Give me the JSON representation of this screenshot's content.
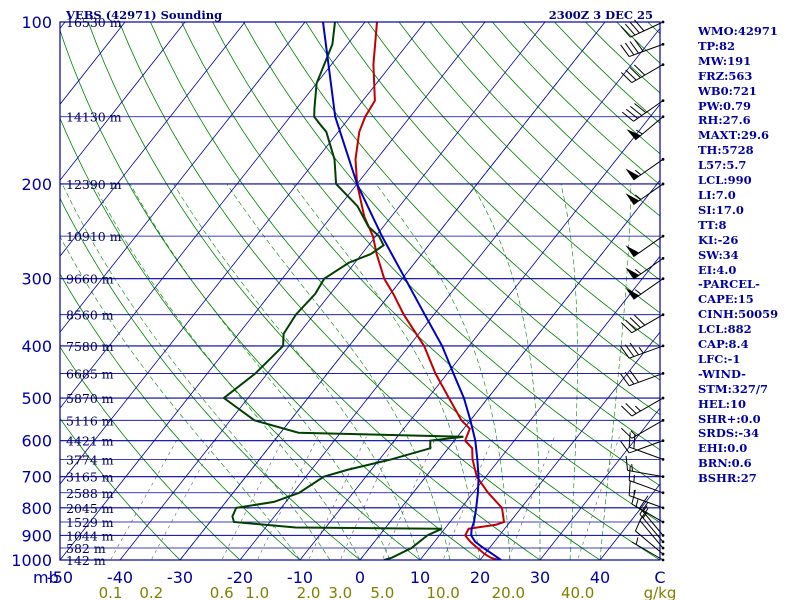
{
  "chart_data": {
    "type": "line",
    "title": "VEBS (42971) Sounding",
    "datetime": "2300Z 3 DEC 25",
    "ylabel": "mb",
    "xlabel": "C",
    "mixing_ratio_unit": "g/kg",
    "temperature_range": [
      -50,
      50
    ],
    "pressure_range": [
      1000,
      100
    ],
    "log_pressure": true,
    "pressure_levels": [
      {
        "p": 100,
        "label": "100"
      },
      {
        "p": 200,
        "label": "200"
      },
      {
        "p": 300,
        "label": "300"
      },
      {
        "p": 400,
        "label": "400"
      },
      {
        "p": 500,
        "label": "500"
      },
      {
        "p": 600,
        "label": "600"
      },
      {
        "p": 700,
        "label": "700"
      },
      {
        "p": 800,
        "label": "800"
      },
      {
        "p": 900,
        "label": "900"
      },
      {
        "p": 1000,
        "label": "1000"
      }
    ],
    "temperature_ticks": [
      "-50",
      "-40",
      "-30",
      "-20",
      "-10",
      "0",
      "10",
      "20",
      "30",
      "40"
    ],
    "mixing_ratio_ticks": [
      "0.1",
      "0.2",
      "0.6",
      "1.0",
      "2.0",
      "3.0",
      "5.0",
      "10.0",
      "20.0",
      "40.0"
    ],
    "height_labels": [
      {
        "p": 100,
        "label": "16530 m"
      },
      {
        "p": 150,
        "label": "14130 m"
      },
      {
        "p": 200,
        "label": "12390 m"
      },
      {
        "p": 250,
        "label": "10910 m"
      },
      {
        "p": 300,
        "label": "9660 m"
      },
      {
        "p": 350,
        "label": "8560 m"
      },
      {
        "p": 400,
        "label": "7580 m"
      },
      {
        "p": 450,
        "label": "6685 m"
      },
      {
        "p": 500,
        "label": "5870 m"
      },
      {
        "p": 550,
        "label": "5116 m"
      },
      {
        "p": 600,
        "label": "4421 m"
      },
      {
        "p": 650,
        "label": "3774 m"
      },
      {
        "p": 700,
        "label": "3165 m"
      },
      {
        "p": 750,
        "label": "2588 m"
      },
      {
        "p": 800,
        "label": "2045 m"
      },
      {
        "p": 850,
        "label": "1529 m"
      },
      {
        "p": 900,
        "label": "1044 m"
      },
      {
        "p": 950,
        "label": "582 m"
      },
      {
        "p": 1000,
        "label": "142 m"
      }
    ],
    "series": [
      {
        "key": "temperature",
        "color": "#c00000",
        "points": [
          [
            1000,
            23.0
          ],
          [
            990,
            21.5
          ],
          [
            975,
            20.0
          ],
          [
            950,
            18.0
          ],
          [
            925,
            16.0
          ],
          [
            900,
            14.3
          ],
          [
            875,
            14.0
          ],
          [
            860,
            18.0
          ],
          [
            850,
            19.0
          ],
          [
            800,
            16.8
          ],
          [
            750,
            12.5
          ],
          [
            700,
            8.5
          ],
          [
            650,
            5.5
          ],
          [
            620,
            4.0
          ],
          [
            600,
            1.8
          ],
          [
            570,
            1.0
          ],
          [
            550,
            -1.5
          ],
          [
            500,
            -6.5
          ],
          [
            450,
            -12.0
          ],
          [
            400,
            -17.5
          ],
          [
            350,
            -25.0
          ],
          [
            320,
            -29.5
          ],
          [
            300,
            -33.0
          ],
          [
            270,
            -37.5
          ],
          [
            250,
            -40.5
          ],
          [
            230,
            -44.5
          ],
          [
            200,
            -50.0
          ],
          [
            180,
            -53.5
          ],
          [
            160,
            -56.5
          ],
          [
            150,
            -57.5
          ],
          [
            140,
            -58.0
          ],
          [
            120,
            -63.0
          ],
          [
            100,
            -68.0
          ]
        ]
      },
      {
        "key": "dewpoint",
        "color": "#004000",
        "points": [
          [
            1000,
            4.0
          ],
          [
            990,
            5.0
          ],
          [
            950,
            7.0
          ],
          [
            900,
            8.0
          ],
          [
            875,
            9.5
          ],
          [
            870,
            -15.0
          ],
          [
            850,
            -26.0
          ],
          [
            830,
            -27.0
          ],
          [
            800,
            -27.5
          ],
          [
            780,
            -22.0
          ],
          [
            750,
            -19.0
          ],
          [
            700,
            -17.0
          ],
          [
            680,
            -14.0
          ],
          [
            650,
            -8.0
          ],
          [
            620,
            -3.0
          ],
          [
            600,
            -4.0
          ],
          [
            590,
            1.0
          ],
          [
            580,
            -27.0
          ],
          [
            550,
            -36.0
          ],
          [
            500,
            -44.0
          ],
          [
            450,
            -42.0
          ],
          [
            400,
            -41.0
          ],
          [
            380,
            -42.5
          ],
          [
            350,
            -43.0
          ],
          [
            320,
            -42.5
          ],
          [
            300,
            -43.0
          ],
          [
            280,
            -41.0
          ],
          [
            270,
            -38.5
          ],
          [
            260,
            -37.5
          ],
          [
            250,
            -39.5
          ],
          [
            240,
            -42.5
          ],
          [
            220,
            -47.0
          ],
          [
            200,
            -53.5
          ],
          [
            180,
            -57.0
          ],
          [
            160,
            -62.0
          ],
          [
            155,
            -64.0
          ],
          [
            150,
            -66.0
          ],
          [
            145,
            -67.0
          ],
          [
            130,
            -70.0
          ],
          [
            110,
            -72.5
          ],
          [
            100,
            -75.0
          ]
        ]
      },
      {
        "key": "parcel",
        "color": "#0000c0",
        "points": [
          [
            1000,
            23.5
          ],
          [
            975,
            21.3
          ],
          [
            950,
            19.0
          ],
          [
            925,
            16.8
          ],
          [
            900,
            15.3
          ],
          [
            875,
            14.5
          ],
          [
            850,
            14.0
          ],
          [
            800,
            12.5
          ],
          [
            750,
            10.8
          ],
          [
            700,
            8.8
          ],
          [
            650,
            6.3
          ],
          [
            600,
            3.5
          ],
          [
            550,
            0.0
          ],
          [
            500,
            -4.0
          ],
          [
            450,
            -9.0
          ],
          [
            400,
            -14.5
          ],
          [
            350,
            -21.5
          ],
          [
            300,
            -29.5
          ],
          [
            250,
            -39.0
          ],
          [
            200,
            -50.0
          ],
          [
            150,
            -62.5
          ],
          [
            100,
            -77.0
          ]
        ]
      }
    ],
    "wind_barbs": [
      {
        "p": 1000,
        "dir": 300,
        "spd": 5
      },
      {
        "p": 975,
        "dir": 310,
        "spd": 10
      },
      {
        "p": 950,
        "dir": 320,
        "spd": 10
      },
      {
        "p": 925,
        "dir": 320,
        "spd": 15
      },
      {
        "p": 900,
        "dir": 320,
        "spd": 15
      },
      {
        "p": 850,
        "dir": 300,
        "spd": 15
      },
      {
        "p": 800,
        "dir": 290,
        "spd": 15
      },
      {
        "p": 750,
        "dir": 290,
        "spd": 15
      },
      {
        "p": 700,
        "dir": 280,
        "spd": 15
      },
      {
        "p": 650,
        "dir": 290,
        "spd": 20
      },
      {
        "p": 600,
        "dir": 250,
        "spd": 10
      },
      {
        "p": 550,
        "dir": 240,
        "spd": 15
      },
      {
        "p": 500,
        "dir": 240,
        "spd": 25
      },
      {
        "p": 450,
        "dir": 250,
        "spd": 30
      },
      {
        "p": 400,
        "dir": 250,
        "spd": 35
      },
      {
        "p": 350,
        "dir": 240,
        "spd": 40
      },
      {
        "p": 300,
        "dir": 235,
        "spd": 55
      },
      {
        "p": 275,
        "dir": 235,
        "spd": 55
      },
      {
        "p": 250,
        "dir": 235,
        "spd": 50
      },
      {
        "p": 200,
        "dir": 235,
        "spd": 55
      },
      {
        "p": 180,
        "dir": 235,
        "spd": 55
      },
      {
        "p": 150,
        "dir": 230,
        "spd": 55
      },
      {
        "p": 140,
        "dir": 235,
        "spd": 40
      },
      {
        "p": 120,
        "dir": 240,
        "spd": 40
      },
      {
        "p": 110,
        "dir": 250,
        "spd": 40
      },
      {
        "p": 100,
        "dir": 245,
        "spd": 40
      }
    ],
    "colors": {
      "isobar": "#0000a0",
      "isotherm": "#0000a0",
      "dry_adiabat": "#008000",
      "moist_adiabat": "#008000",
      "mixing_ratio": "#606060",
      "frame": "#0000a0",
      "tick_text": "#0000a0",
      "mixing_text": "#808000",
      "height_text": "#000060",
      "title_text": "#000080"
    }
  },
  "indices": [
    "WMO:42971",
    "TP:82",
    "MW:191",
    "FRZ:563",
    "WB0:721",
    "PW:0.79",
    "RH:27.6",
    "MAXT:29.6",
    "TH:5728",
    "L57:5.7",
    "LCL:990",
    "LI:7.0",
    "SI:17.0",
    "TT:8",
    "KI:-26",
    "SW:34",
    "EI:4.0",
    "-PARCEL-",
    "CAPE:15",
    "CINH:50059",
    "LCL:882",
    "CAP:8.4",
    "LFC:-1",
    "-WIND-",
    "STM:327/7",
    "HEL:10",
    "SHR+:0.0",
    "SRDS:-34",
    "EHI:0.0",
    "BRN:0.6",
    "BSHR:27"
  ]
}
